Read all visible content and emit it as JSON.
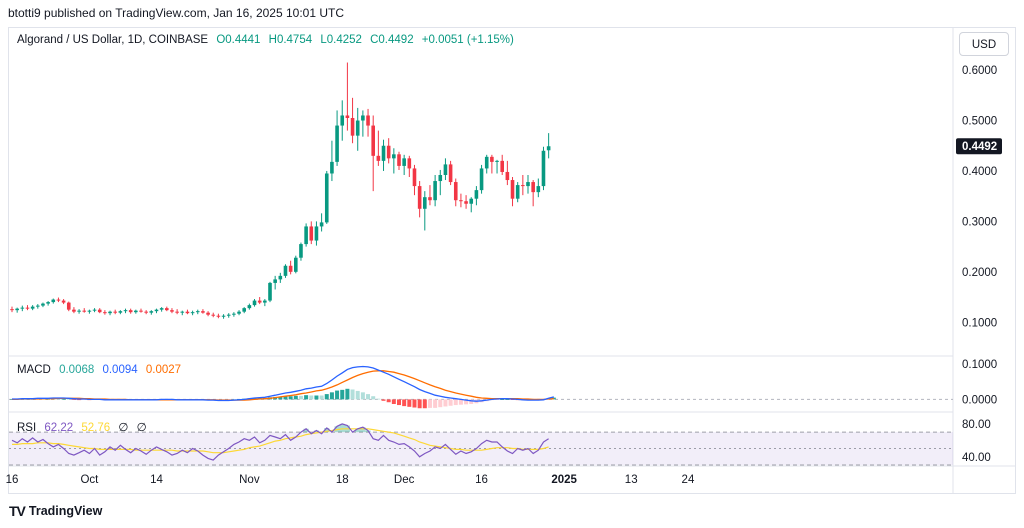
{
  "header": {
    "published": "btotti9 published on TradingView.com, Jan 16, 2025 10:01 UTC"
  },
  "legend": {
    "symbol": "Algorand / US Dollar, 1D, COINBASE",
    "open": "O0.4441",
    "high": "H0.4754",
    "low": "L0.4252",
    "close": "C0.4492",
    "change": "+0.0051 (+1.15%)"
  },
  "currency_button": "USD",
  "last_price": "0.4492",
  "macd": {
    "label": "MACD",
    "v1": "0.0068",
    "v2": "0.0094",
    "v3": "0.0027"
  },
  "rsi": {
    "label": "RSI",
    "v1": "62.22",
    "v2": "52.76",
    "v3": "∅",
    "v4": "∅"
  },
  "footer": {
    "brand": "TradingView"
  },
  "colors": {
    "up": "#089981",
    "down": "#f23645",
    "macd_line": "#2962ff",
    "signal_line": "#ff6d00",
    "rsi_line": "#7e57c2",
    "rsi_ma": "#fdd835",
    "hist_up": "#26a69a",
    "hist_up_light": "#b2dfdb",
    "hist_down": "#ff5252",
    "hist_down_light": "#ffcdd2"
  },
  "chart_data": [
    {
      "type": "candlestick",
      "title": "Algorand / US Dollar, 1D, COINBASE",
      "y_ticks": [
        "0.6000",
        "0.5000",
        "0.4000",
        "0.3000",
        "0.2000",
        "0.1000"
      ],
      "y_tick_values": [
        0.6,
        0.5,
        0.4,
        0.3,
        0.2,
        0.1
      ],
      "ylim": [
        0.045,
        0.62
      ],
      "x_ticks": [
        "16",
        "Oct",
        "14",
        "Nov",
        "18",
        "Dec",
        "16",
        "2025",
        "13",
        "24"
      ],
      "x_tick_days": [
        0,
        15,
        28,
        46,
        64,
        76,
        91,
        107,
        120,
        131
      ],
      "candles": [
        [
          0.126,
          0.131,
          0.12,
          0.124
        ],
        [
          0.124,
          0.129,
          0.119,
          0.127
        ],
        [
          0.127,
          0.133,
          0.122,
          0.129
        ],
        [
          0.129,
          0.134,
          0.124,
          0.127
        ],
        [
          0.127,
          0.134,
          0.124,
          0.131
        ],
        [
          0.131,
          0.136,
          0.127,
          0.133
        ],
        [
          0.133,
          0.139,
          0.13,
          0.137
        ],
        [
          0.137,
          0.142,
          0.133,
          0.14
        ],
        [
          0.14,
          0.147,
          0.137,
          0.145
        ],
        [
          0.145,
          0.149,
          0.14,
          0.143
        ],
        [
          0.143,
          0.146,
          0.136,
          0.139
        ],
        [
          0.139,
          0.141,
          0.122,
          0.125
        ],
        [
          0.125,
          0.13,
          0.118,
          0.121
        ],
        [
          0.121,
          0.126,
          0.117,
          0.123
        ],
        [
          0.123,
          0.128,
          0.119,
          0.121
        ],
        [
          0.121,
          0.125,
          0.117,
          0.123
        ],
        [
          0.123,
          0.128,
          0.12,
          0.125
        ],
        [
          0.125,
          0.128,
          0.118,
          0.12
        ],
        [
          0.12,
          0.124,
          0.115,
          0.118
        ],
        [
          0.118,
          0.123,
          0.114,
          0.121
        ],
        [
          0.121,
          0.125,
          0.116,
          0.119
        ],
        [
          0.119,
          0.124,
          0.116,
          0.122
        ],
        [
          0.122,
          0.127,
          0.118,
          0.124
        ],
        [
          0.124,
          0.127,
          0.117,
          0.12
        ],
        [
          0.12,
          0.125,
          0.117,
          0.123
        ],
        [
          0.123,
          0.127,
          0.119,
          0.121
        ],
        [
          0.121,
          0.124,
          0.116,
          0.119
        ],
        [
          0.119,
          0.124,
          0.115,
          0.122
        ],
        [
          0.122,
          0.127,
          0.118,
          0.125
        ],
        [
          0.125,
          0.13,
          0.121,
          0.128
        ],
        [
          0.128,
          0.131,
          0.122,
          0.124
        ],
        [
          0.124,
          0.128,
          0.118,
          0.121
        ],
        [
          0.121,
          0.126,
          0.116,
          0.119
        ],
        [
          0.119,
          0.123,
          0.114,
          0.121
        ],
        [
          0.121,
          0.125,
          0.116,
          0.118
        ],
        [
          0.118,
          0.123,
          0.114,
          0.12
        ],
        [
          0.12,
          0.125,
          0.116,
          0.122
        ],
        [
          0.122,
          0.126,
          0.117,
          0.119
        ],
        [
          0.119,
          0.122,
          0.112,
          0.115
        ],
        [
          0.115,
          0.119,
          0.11,
          0.113
        ],
        [
          0.113,
          0.117,
          0.108,
          0.111
        ],
        [
          0.111,
          0.116,
          0.107,
          0.113
        ],
        [
          0.113,
          0.118,
          0.109,
          0.115
        ],
        [
          0.115,
          0.12,
          0.111,
          0.117
        ],
        [
          0.117,
          0.124,
          0.114,
          0.121
        ],
        [
          0.121,
          0.13,
          0.118,
          0.128
        ],
        [
          0.128,
          0.137,
          0.125,
          0.134
        ],
        [
          0.134,
          0.146,
          0.131,
          0.143
        ],
        [
          0.143,
          0.15,
          0.136,
          0.139
        ],
        [
          0.139,
          0.146,
          0.132,
          0.143
        ],
        [
          0.143,
          0.18,
          0.14,
          0.178
        ],
        [
          0.178,
          0.192,
          0.165,
          0.185
        ],
        [
          0.185,
          0.198,
          0.178,
          0.192
        ],
        [
          0.192,
          0.215,
          0.188,
          0.212
        ],
        [
          0.212,
          0.222,
          0.195,
          0.2
        ],
        [
          0.2,
          0.232,
          0.197,
          0.228
        ],
        [
          0.228,
          0.258,
          0.222,
          0.255
        ],
        [
          0.255,
          0.296,
          0.25,
          0.29
        ],
        [
          0.29,
          0.3,
          0.255,
          0.262
        ],
        [
          0.262,
          0.3,
          0.252,
          0.29
        ],
        [
          0.29,
          0.316,
          0.28,
          0.298
        ],
        [
          0.298,
          0.4,
          0.295,
          0.395
        ],
        [
          0.395,
          0.46,
          0.38,
          0.418
        ],
        [
          0.418,
          0.52,
          0.41,
          0.49
        ],
        [
          0.49,
          0.54,
          0.46,
          0.51
        ],
        [
          0.51,
          0.615,
          0.48,
          0.505
        ],
        [
          0.505,
          0.545,
          0.455,
          0.47
        ],
        [
          0.47,
          0.525,
          0.44,
          0.5
        ],
        [
          0.5,
          0.52,
          0.468,
          0.51
        ],
        [
          0.51,
          0.523,
          0.468,
          0.49
        ],
        [
          0.49,
          0.51,
          0.36,
          0.43
        ],
        [
          0.43,
          0.48,
          0.41,
          0.42
        ],
        [
          0.42,
          0.462,
          0.4,
          0.45
        ],
        [
          0.45,
          0.465,
          0.415,
          0.425
        ],
        [
          0.425,
          0.445,
          0.395,
          0.433
        ],
        [
          0.433,
          0.438,
          0.402,
          0.41
        ],
        [
          0.41,
          0.432,
          0.392,
          0.425
        ],
        [
          0.425,
          0.43,
          0.388,
          0.405
        ],
        [
          0.405,
          0.412,
          0.352,
          0.37
        ],
        [
          0.37,
          0.38,
          0.308,
          0.325
        ],
        [
          0.325,
          0.36,
          0.282,
          0.348
        ],
        [
          0.348,
          0.372,
          0.332,
          0.342
        ],
        [
          0.342,
          0.392,
          0.33,
          0.38
        ],
        [
          0.38,
          0.402,
          0.352,
          0.392
        ],
        [
          0.392,
          0.425,
          0.382,
          0.413
        ],
        [
          0.413,
          0.42,
          0.372,
          0.378
        ],
        [
          0.378,
          0.385,
          0.33,
          0.342
        ],
        [
          0.342,
          0.355,
          0.328,
          0.34
        ],
        [
          0.34,
          0.352,
          0.325,
          0.335
        ],
        [
          0.335,
          0.348,
          0.318,
          0.345
        ],
        [
          0.345,
          0.37,
          0.332,
          0.362
        ],
        [
          0.362,
          0.412,
          0.355,
          0.405
        ],
        [
          0.405,
          0.432,
          0.395,
          0.428
        ],
        [
          0.428,
          0.432,
          0.395,
          0.418
        ],
        [
          0.418,
          0.422,
          0.395,
          0.42
        ],
        [
          0.42,
          0.432,
          0.392,
          0.398
        ],
        [
          0.398,
          0.42,
          0.372,
          0.382
        ],
        [
          0.382,
          0.388,
          0.33,
          0.345
        ],
        [
          0.345,
          0.378,
          0.338,
          0.372
        ],
        [
          0.372,
          0.392,
          0.352,
          0.37
        ],
        [
          0.37,
          0.392,
          0.355,
          0.378
        ],
        [
          0.378,
          0.382,
          0.33,
          0.358
        ],
        [
          0.358,
          0.385,
          0.348,
          0.37
        ],
        [
          0.37,
          0.448,
          0.362,
          0.44
        ],
        [
          0.441,
          0.475,
          0.425,
          0.449
        ]
      ]
    },
    {
      "type": "line",
      "title": "MACD",
      "y_ticks": [
        "0.1000",
        "0.0000"
      ],
      "y_tick_values": [
        0.1,
        0.0
      ],
      "ylim": [
        -0.03,
        0.12
      ],
      "series": [
        {
          "name": "0.0068",
          "values": [
            0.001,
            0.001,
            0.002,
            0.002,
            0.002,
            0.003,
            0.003,
            0.003,
            0.004,
            0.004,
            0.004,
            0.003,
            0.002,
            0.001,
            0.001,
            0.0,
            0.0,
            0.0,
            -0.001,
            -0.001,
            -0.001,
            -0.001,
            -0.001,
            -0.001,
            -0.001,
            -0.001,
            -0.001,
            -0.001,
            -0.001,
            0.0,
            0.0,
            0.0,
            -0.001,
            -0.001,
            -0.001,
            -0.001,
            -0.001,
            -0.001,
            -0.002,
            -0.002,
            -0.003,
            -0.003,
            -0.003,
            -0.002,
            -0.001,
            0.0,
            0.002,
            0.004,
            0.005,
            0.006,
            0.009,
            0.012,
            0.015,
            0.018,
            0.02,
            0.023,
            0.026,
            0.03,
            0.032,
            0.035,
            0.037,
            0.045,
            0.055,
            0.066,
            0.075,
            0.085,
            0.09,
            0.092,
            0.093,
            0.092,
            0.089,
            0.083,
            0.077,
            0.071,
            0.064,
            0.057,
            0.05,
            0.043,
            0.036,
            0.028,
            0.022,
            0.017,
            0.012,
            0.009,
            0.006,
            0.004,
            0.002,
            0.0,
            -0.002,
            -0.004,
            -0.005,
            -0.004,
            -0.002,
            0.0,
            0.001,
            0.002,
            0.002,
            0.001,
            0.0,
            -0.001,
            -0.002,
            -0.002,
            -0.002,
            -0.001,
            0.003,
            0.007
          ]
        },
        {
          "name": "0.0094",
          "values": [
            0.0,
            0.0,
            0.001,
            0.001,
            0.001,
            0.001,
            0.002,
            0.002,
            0.002,
            0.003,
            0.003,
            0.003,
            0.003,
            0.003,
            0.002,
            0.002,
            0.001,
            0.001,
            0.001,
            0.0,
            0.0,
            0.0,
            0.0,
            -0.001,
            -0.001,
            -0.001,
            -0.001,
            -0.001,
            -0.001,
            -0.001,
            -0.001,
            -0.001,
            -0.001,
            -0.001,
            -0.001,
            -0.001,
            -0.001,
            -0.001,
            -0.001,
            -0.001,
            -0.002,
            -0.002,
            -0.002,
            -0.002,
            -0.002,
            -0.002,
            -0.001,
            0.0,
            0.001,
            0.002,
            0.003,
            0.005,
            0.007,
            0.009,
            0.011,
            0.013,
            0.016,
            0.018,
            0.021,
            0.024,
            0.026,
            0.03,
            0.035,
            0.041,
            0.048,
            0.055,
            0.062,
            0.068,
            0.073,
            0.077,
            0.08,
            0.081,
            0.081,
            0.079,
            0.077,
            0.073,
            0.069,
            0.064,
            0.059,
            0.053,
            0.047,
            0.041,
            0.036,
            0.031,
            0.026,
            0.022,
            0.018,
            0.015,
            0.012,
            0.009,
            0.006,
            0.004,
            0.003,
            0.002,
            0.002,
            0.002,
            0.002,
            0.002,
            0.002,
            0.001,
            0.001,
            0.0,
            0.0,
            0.0,
            0.001,
            0.002
          ]
        }
      ]
    },
    {
      "type": "line",
      "title": "RSI",
      "y_ticks": [
        "80.00",
        "40.00"
      ],
      "y_tick_values": [
        80,
        40
      ],
      "ylim": [
        30,
        92
      ],
      "bands": [
        70,
        50,
        30
      ],
      "series": [
        {
          "name": "62.22",
          "values": [
            60,
            57,
            62,
            58,
            63,
            58,
            61,
            56,
            52,
            55,
            50,
            44,
            42,
            45,
            48,
            44,
            50,
            42,
            46,
            52,
            48,
            54,
            49,
            45,
            50,
            47,
            43,
            48,
            52,
            49,
            46,
            42,
            44,
            48,
            45,
            50,
            47,
            42,
            38,
            36,
            42,
            46,
            50,
            55,
            58,
            62,
            60,
            64,
            57,
            60,
            66,
            64,
            62,
            67,
            60,
            64,
            70,
            74,
            68,
            72,
            68,
            75,
            70,
            77,
            80,
            78,
            70,
            74,
            76,
            72,
            62,
            60,
            66,
            60,
            58,
            55,
            56,
            52,
            47,
            40,
            44,
            47,
            52,
            50,
            55,
            49,
            43,
            47,
            44,
            46,
            50,
            56,
            60,
            58,
            58,
            52,
            47,
            44,
            50,
            48,
            50,
            44,
            48,
            58,
            62
          ]
        },
        {
          "name": "52.76",
          "values": [
            55,
            55,
            56,
            56,
            56,
            57,
            57,
            57,
            56,
            56,
            55,
            54,
            53,
            52,
            51,
            50,
            50,
            49,
            49,
            49,
            49,
            49,
            49,
            49,
            48,
            48,
            48,
            48,
            48,
            48,
            48,
            48,
            47,
            47,
            47,
            47,
            47,
            47,
            46,
            45,
            45,
            45,
            46,
            47,
            48,
            49,
            51,
            52,
            53,
            55,
            57,
            59,
            60,
            62,
            63,
            64,
            65,
            67,
            68,
            69,
            70,
            71,
            72,
            73,
            74,
            74,
            74,
            74,
            74,
            74,
            73,
            72,
            71,
            70,
            69,
            67,
            65,
            63,
            61,
            58,
            56,
            54,
            53,
            52,
            51,
            50,
            49,
            49,
            48,
            48,
            48,
            48,
            49,
            50,
            51,
            51,
            51,
            50,
            50,
            49,
            49,
            49,
            49,
            50,
            52
          ]
        }
      ]
    }
  ]
}
